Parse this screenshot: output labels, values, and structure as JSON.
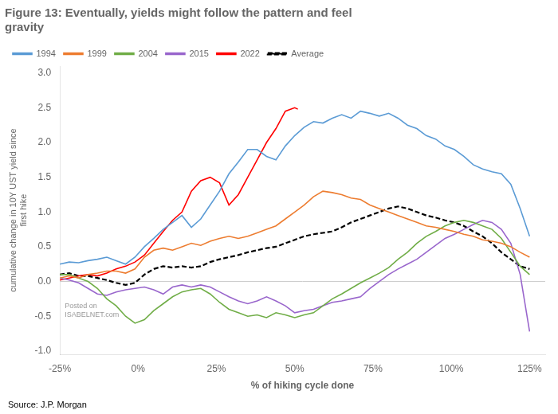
{
  "chart_data": {
    "type": "line",
    "title": "Figure 13: Eventually, yields might follow the pattern and feel\ngravity",
    "x_label": "% of hiking cycle done",
    "y_label": "cumulative change in 10Y UST yield since\nfirst hike",
    "annotations": [
      "Posted on\nISABELNET.com"
    ],
    "source": "Source: J.P. Morgan",
    "xlim": [
      -25,
      130
    ],
    "ylim": [
      -1.05,
      3.1
    ],
    "xticks": [
      {
        "value": -25,
        "label": "-25%"
      },
      {
        "value": 0,
        "label": "0%"
      },
      {
        "value": 25,
        "label": "25%"
      },
      {
        "value": 50,
        "label": "50%"
      },
      {
        "value": 75,
        "label": "75%"
      },
      {
        "value": 100,
        "label": "100%"
      },
      {
        "value": 125,
        "label": "125%"
      }
    ],
    "yticks": [
      {
        "value": -1.0,
        "label": "-1.0"
      },
      -0.5,
      {
        "value": 0.0,
        "label": "0.0"
      },
      0.5,
      {
        "value": 1.0,
        "label": "1.0"
      },
      1.5,
      {
        "value": 2.0,
        "label": "2.0"
      },
      2.5,
      {
        "value": 3.0,
        "label": "3.0"
      }
    ],
    "grid": false,
    "legend": "upper left",
    "reference_line": {
      "y": 0,
      "color": "#CCCCCC"
    },
    "series": [
      {
        "name": "1994",
        "color": "#5B9BD5",
        "line_style": "solid",
        "x": [
          -25,
          -22,
          -19,
          -16,
          -13,
          -10,
          -7,
          -4,
          -1,
          2,
          5,
          8,
          11,
          14,
          17,
          20,
          23,
          26,
          29,
          32,
          35,
          38,
          41,
          44,
          47,
          50,
          53,
          56,
          59,
          62,
          65,
          68,
          71,
          74,
          77,
          80,
          83,
          86,
          89,
          92,
          95,
          98,
          101,
          104,
          107,
          110,
          113,
          116,
          119,
          122,
          125
        ],
        "values": [
          0.25,
          0.28,
          0.27,
          0.3,
          0.32,
          0.35,
          0.3,
          0.25,
          0.35,
          0.5,
          0.62,
          0.75,
          0.85,
          0.95,
          0.78,
          0.9,
          1.1,
          1.3,
          1.55,
          1.72,
          1.9,
          1.9,
          1.8,
          1.75,
          1.95,
          2.1,
          2.22,
          2.3,
          2.28,
          2.35,
          2.4,
          2.35,
          2.45,
          2.42,
          2.38,
          2.42,
          2.35,
          2.25,
          2.2,
          2.1,
          2.05,
          1.95,
          1.9,
          1.8,
          1.68,
          1.62,
          1.58,
          1.55,
          1.4,
          1.05,
          0.65
        ]
      },
      {
        "name": "1999",
        "color": "#ED7D31",
        "line_style": "solid",
        "x": [
          -25,
          -22,
          -19,
          -16,
          -13,
          -10,
          -7,
          -4,
          -1,
          2,
          5,
          8,
          11,
          14,
          17,
          20,
          23,
          26,
          29,
          32,
          35,
          38,
          41,
          44,
          47,
          50,
          53,
          56,
          59,
          62,
          65,
          68,
          71,
          74,
          77,
          80,
          83,
          86,
          89,
          92,
          95,
          98,
          101,
          104,
          107,
          110,
          113,
          116,
          119,
          122,
          125
        ],
        "values": [
          0.05,
          0.08,
          0.05,
          0.1,
          0.12,
          0.15,
          0.15,
          0.12,
          0.18,
          0.35,
          0.45,
          0.48,
          0.45,
          0.5,
          0.55,
          0.52,
          0.58,
          0.62,
          0.65,
          0.62,
          0.65,
          0.7,
          0.75,
          0.8,
          0.9,
          1.0,
          1.1,
          1.22,
          1.3,
          1.28,
          1.25,
          1.2,
          1.18,
          1.1,
          1.05,
          1.0,
          0.95,
          0.9,
          0.85,
          0.8,
          0.78,
          0.75,
          0.72,
          0.68,
          0.65,
          0.6,
          0.58,
          0.55,
          0.5,
          0.42,
          0.35
        ]
      },
      {
        "name": "2004",
        "color": "#70AD47",
        "line_style": "solid",
        "x": [
          -25,
          -22,
          -19,
          -16,
          -13,
          -10,
          -7,
          -4,
          -1,
          2,
          5,
          8,
          11,
          14,
          17,
          20,
          23,
          26,
          29,
          32,
          35,
          38,
          41,
          44,
          47,
          50,
          53,
          56,
          59,
          62,
          65,
          68,
          71,
          74,
          77,
          80,
          83,
          86,
          89,
          92,
          95,
          98,
          101,
          104,
          107,
          110,
          113,
          116,
          119,
          122,
          125
        ],
        "values": [
          0.1,
          0.1,
          0.05,
          0.0,
          -0.1,
          -0.25,
          -0.35,
          -0.5,
          -0.6,
          -0.55,
          -0.42,
          -0.32,
          -0.22,
          -0.15,
          -0.12,
          -0.1,
          -0.18,
          -0.3,
          -0.4,
          -0.45,
          -0.5,
          -0.48,
          -0.52,
          -0.45,
          -0.48,
          -0.52,
          -0.48,
          -0.45,
          -0.35,
          -0.25,
          -0.18,
          -0.1,
          -0.02,
          0.05,
          0.12,
          0.2,
          0.32,
          0.42,
          0.55,
          0.65,
          0.72,
          0.8,
          0.85,
          0.88,
          0.85,
          0.8,
          0.75,
          0.62,
          0.42,
          0.22,
          0.1
        ]
      },
      {
        "name": "2015",
        "color": "#9966CC",
        "line_style": "solid",
        "x": [
          -25,
          -22,
          -19,
          -16,
          -13,
          -10,
          -7,
          -4,
          -1,
          2,
          5,
          8,
          11,
          14,
          17,
          20,
          23,
          26,
          29,
          32,
          35,
          38,
          41,
          44,
          47,
          50,
          53,
          56,
          59,
          62,
          65,
          68,
          71,
          74,
          77,
          80,
          83,
          86,
          89,
          92,
          95,
          98,
          101,
          104,
          107,
          110,
          113,
          116,
          119,
          122,
          125
        ],
        "values": [
          0.05,
          0.02,
          -0.02,
          -0.1,
          -0.18,
          -0.2,
          -0.15,
          -0.12,
          -0.1,
          -0.08,
          -0.12,
          -0.18,
          -0.08,
          -0.05,
          -0.08,
          -0.05,
          -0.08,
          -0.15,
          -0.22,
          -0.28,
          -0.32,
          -0.28,
          -0.22,
          -0.28,
          -0.35,
          -0.45,
          -0.42,
          -0.4,
          -0.35,
          -0.3,
          -0.28,
          -0.25,
          -0.22,
          -0.1,
          0.0,
          0.1,
          0.18,
          0.25,
          0.32,
          0.42,
          0.52,
          0.62,
          0.68,
          0.75,
          0.82,
          0.88,
          0.85,
          0.75,
          0.55,
          0.1,
          -0.72
        ]
      },
      {
        "name": "2022",
        "color": "#FF0000",
        "line_style": "solid",
        "x": [
          -25,
          -22,
          -19,
          -16,
          -13,
          -10,
          -7,
          -4,
          -1,
          2,
          5,
          8,
          11,
          14,
          17,
          20,
          23,
          26,
          29,
          32,
          35,
          38,
          41,
          44,
          47,
          50,
          51
        ],
        "values": [
          0.02,
          0.05,
          0.08,
          0.1,
          0.08,
          0.12,
          0.18,
          0.22,
          0.28,
          0.38,
          0.55,
          0.72,
          0.88,
          1.0,
          1.3,
          1.45,
          1.5,
          1.42,
          1.1,
          1.25,
          1.5,
          1.75,
          2.0,
          2.2,
          2.45,
          2.5,
          2.48
        ]
      },
      {
        "name": "Average",
        "color": "#000000",
        "line_style": "dashed",
        "x": [
          -25,
          -22,
          -19,
          -16,
          -13,
          -10,
          -7,
          -4,
          -1,
          2,
          5,
          8,
          11,
          14,
          17,
          20,
          23,
          26,
          29,
          32,
          35,
          38,
          41,
          44,
          47,
          50,
          53,
          56,
          59,
          62,
          65,
          68,
          71,
          74,
          77,
          80,
          83,
          86,
          89,
          92,
          95,
          98,
          101,
          104,
          107,
          110,
          113,
          116,
          119,
          122,
          125
        ],
        "values": [
          0.1,
          0.12,
          0.08,
          0.08,
          0.05,
          0.02,
          -0.02,
          -0.05,
          -0.02,
          0.1,
          0.18,
          0.22,
          0.2,
          0.22,
          0.2,
          0.22,
          0.28,
          0.32,
          0.35,
          0.38,
          0.42,
          0.45,
          0.48,
          0.5,
          0.55,
          0.6,
          0.65,
          0.68,
          0.7,
          0.72,
          0.78,
          0.85,
          0.9,
          0.95,
          1.0,
          1.05,
          1.08,
          1.05,
          1.0,
          0.95,
          0.92,
          0.88,
          0.85,
          0.8,
          0.72,
          0.65,
          0.55,
          0.42,
          0.32,
          0.22,
          0.18
        ]
      }
    ]
  }
}
